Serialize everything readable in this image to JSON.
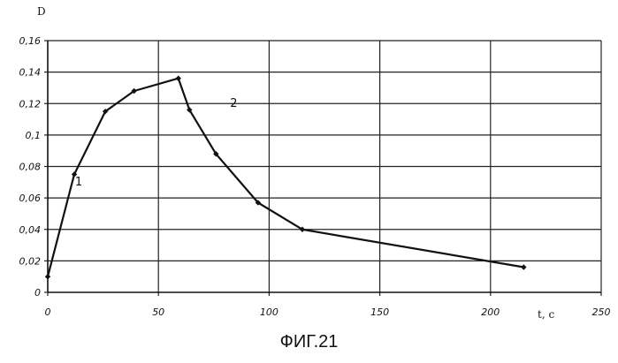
{
  "chart_data": {
    "type": "line",
    "ylabel": "D",
    "xlabel": "t, c",
    "xlim": [
      0,
      250
    ],
    "ylim": [
      0,
      0.16
    ],
    "x_ticks": [
      {
        "value": 0,
        "label": "0"
      },
      {
        "value": 50,
        "label": "50"
      },
      {
        "value": 100,
        "label": "100"
      },
      {
        "value": 150,
        "label": "150"
      },
      {
        "value": 200,
        "label": "200"
      },
      {
        "value": 250,
        "label": "250"
      }
    ],
    "y_ticks": [
      {
        "value": 0,
        "label": "0"
      },
      {
        "value": 0.02,
        "label": "0,02"
      },
      {
        "value": 0.04,
        "label": "0,04"
      },
      {
        "value": 0.06,
        "label": "0,06"
      },
      {
        "value": 0.08,
        "label": "0,08"
      },
      {
        "value": 0.1,
        "label": "0,1"
      },
      {
        "value": 0.12,
        "label": "0,12"
      },
      {
        "value": 0.14,
        "label": "0,14"
      },
      {
        "value": 0.16,
        "label": "0,16"
      }
    ],
    "grid": true,
    "series": [
      {
        "x": [
          0,
          12,
          26,
          39,
          59,
          64,
          76,
          95,
          115,
          215
        ],
        "y": [
          0.01,
          0.075,
          0.115,
          0.128,
          0.136,
          0.116,
          0.088,
          0.057,
          0.04,
          0.016
        ]
      }
    ],
    "annotations": [
      {
        "text": "1",
        "x": 14,
        "y": 0.068
      },
      {
        "text": "2",
        "x": 84,
        "y": 0.118
      }
    ],
    "caption": "ФИГ.21",
    "color": "#111111"
  }
}
